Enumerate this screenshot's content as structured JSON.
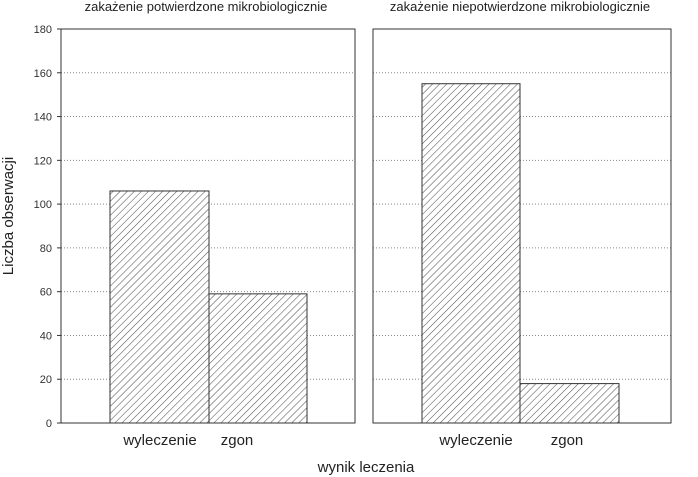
{
  "chart_data": {
    "type": "bar",
    "xlabel": "wynik leczenia",
    "ylabel": "Liczba obserwacji",
    "ylim": [
      0,
      180
    ],
    "yticks": [
      0,
      20,
      40,
      60,
      80,
      100,
      120,
      140,
      160,
      180
    ],
    "grid": "horizontal-dotted",
    "bar_fill": "diagonal-hatch",
    "colors": {
      "bar_stroke": "#333333",
      "hatch": "#555555",
      "grid": "#888888",
      "frame": "#333333"
    },
    "panels": [
      {
        "title": "zakażenie potwierdzone mikrobiologicznie",
        "categories": [
          "wyleczenie",
          "zgon"
        ],
        "values": [
          106,
          59
        ]
      },
      {
        "title": "zakażenie niepotwierdzone mikrobiologicznie",
        "categories": [
          "wyleczenie",
          "zgon"
        ],
        "values": [
          155,
          18
        ]
      }
    ]
  }
}
